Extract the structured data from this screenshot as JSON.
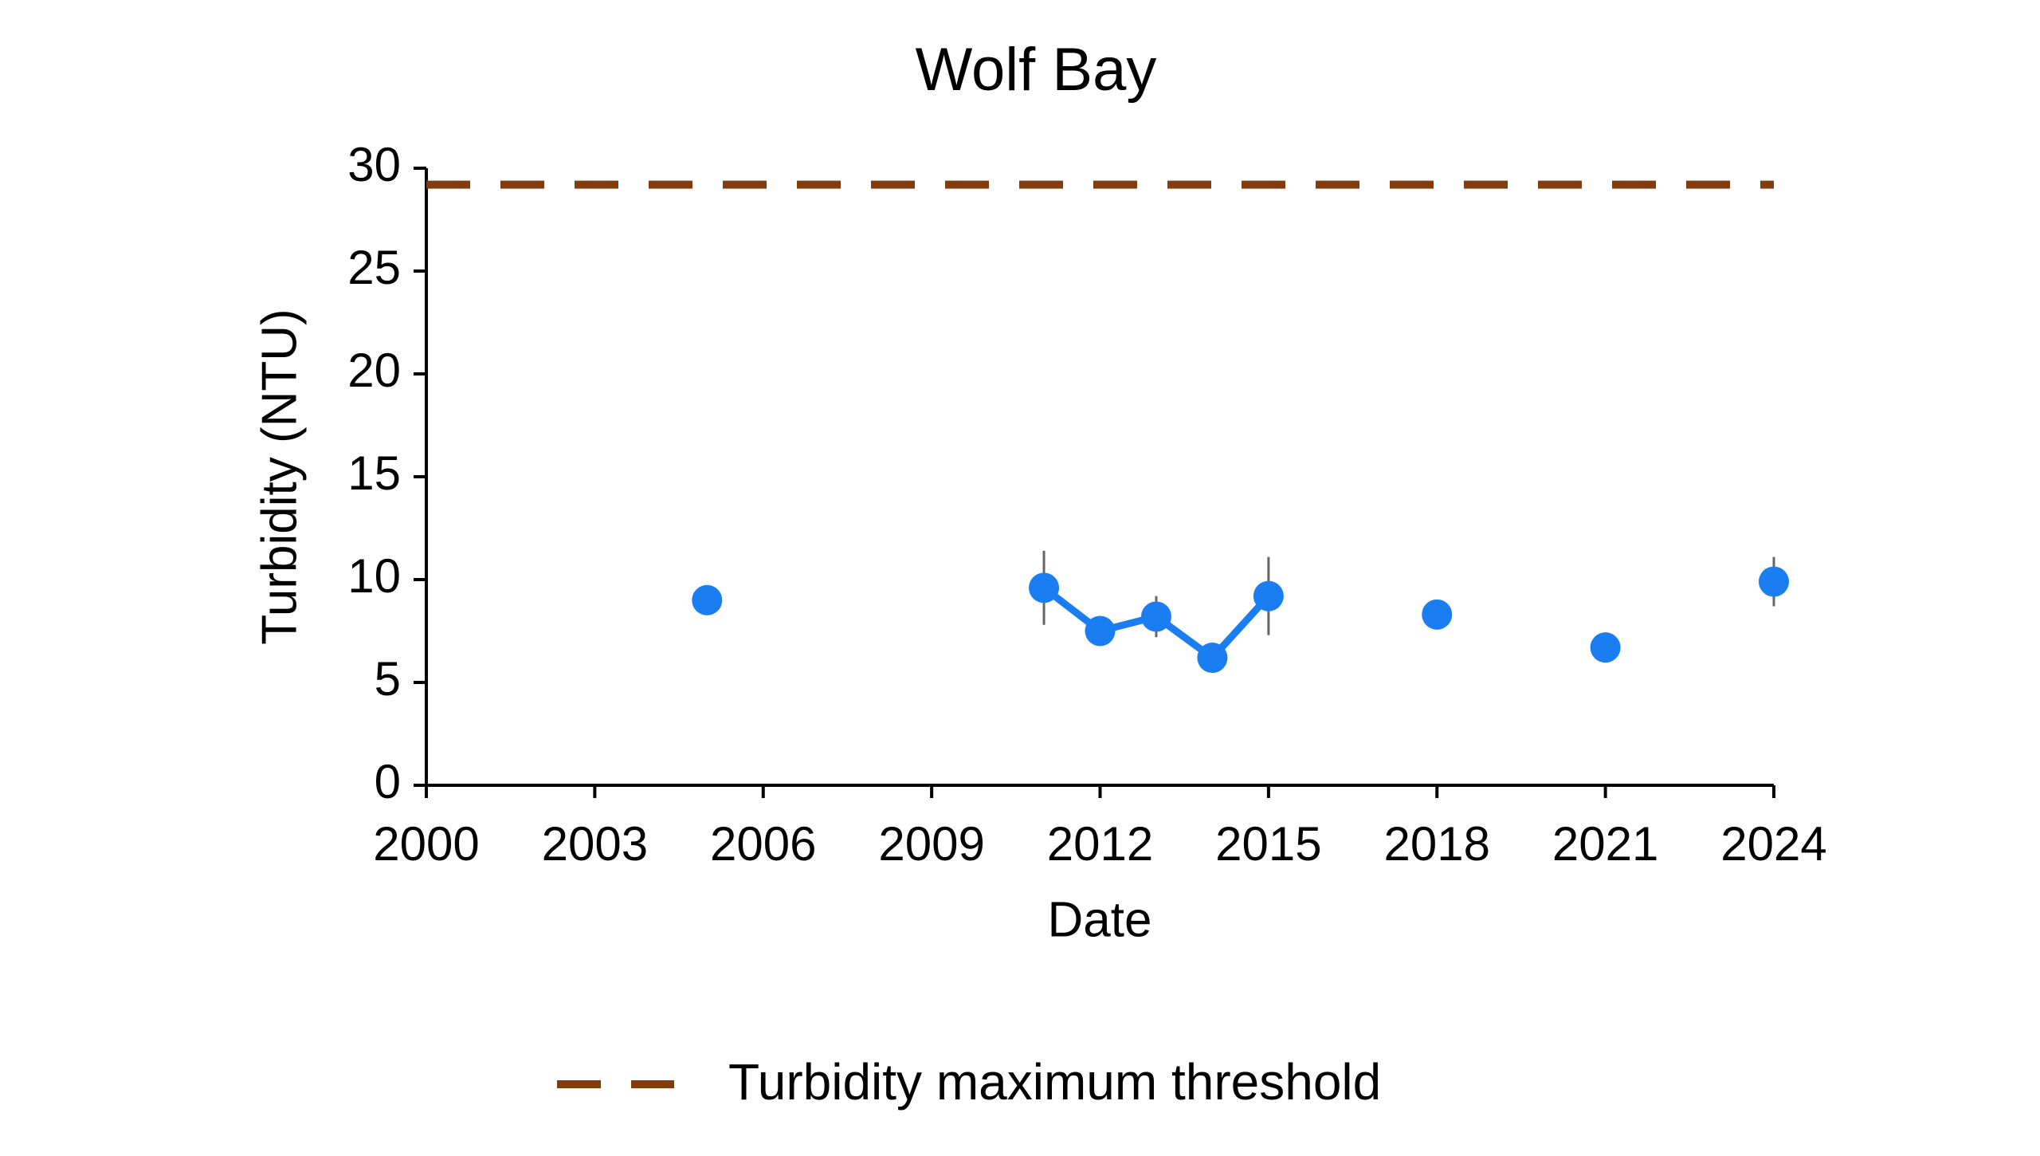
{
  "chart_data": {
    "type": "scatter",
    "title": "Wolf Bay",
    "x_label": "Date",
    "y_label": "Turbidity (NTU)",
    "xlim": [
      2000,
      2024
    ],
    "xticks": [
      2000,
      2003,
      2006,
      2009,
      2012,
      2015,
      2018,
      2021,
      2024
    ],
    "ylim": [
      0,
      30
    ],
    "yticks": [
      0,
      5,
      10,
      15,
      20,
      25,
      30
    ],
    "series": [
      {
        "color": "#1a7ef2",
        "line": false,
        "x": [
          2005,
          2018,
          2021,
          2024
        ],
        "values": [
          9.0,
          8.3,
          6.7,
          9.9
        ],
        "errors": [
          null,
          0.5,
          null,
          1.2
        ]
      },
      {
        "color": "#1a7ef2",
        "line": true,
        "x": [
          2011,
          2012,
          2013,
          2014,
          2015
        ],
        "values": [
          9.6,
          7.5,
          8.2,
          6.2,
          9.2
        ],
        "errors": [
          1.8,
          null,
          1.0,
          null,
          1.9
        ]
      }
    ],
    "threshold": {
      "name": "Turbidity maximum threshold",
      "value": 29.2,
      "color": "#843c0c"
    },
    "legend": "bottom"
  }
}
